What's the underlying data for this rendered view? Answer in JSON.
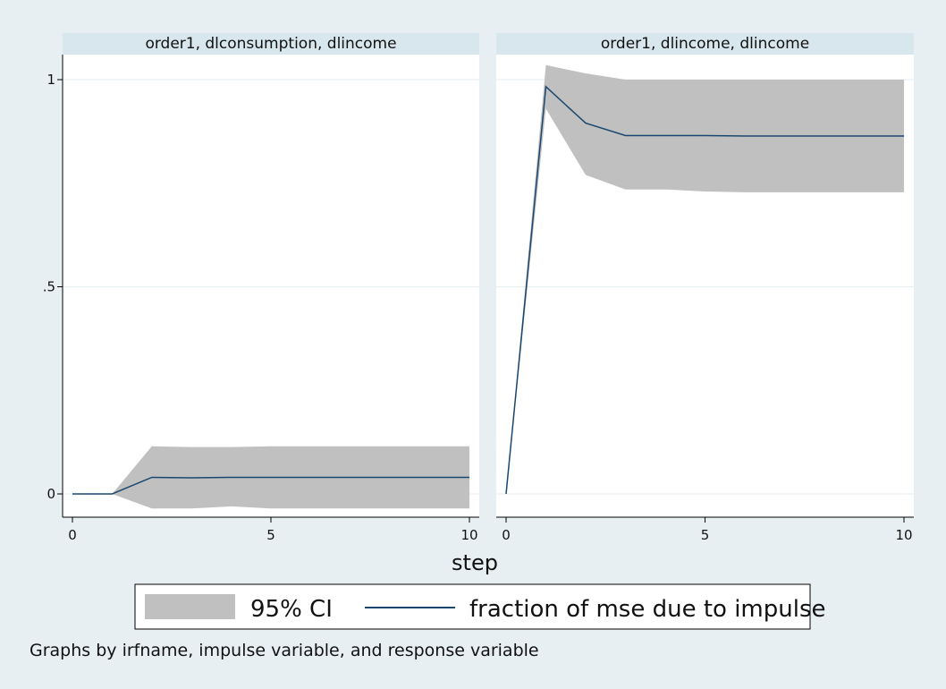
{
  "chart_data": {
    "type": "line",
    "xlabel": "step",
    "x_ticks": [
      0,
      5,
      10
    ],
    "y_ticks": [
      {
        "value": 0,
        "label": "0"
      },
      {
        "value": 0.5,
        "label": ".5"
      },
      {
        "value": 1,
        "label": "1"
      }
    ],
    "xlim": [
      0,
      10
    ],
    "ylim": [
      -0.05,
      1.05
    ],
    "grid": true,
    "panels": [
      {
        "title": "order1, dlconsumption, dlincome",
        "x": [
          0,
          1,
          2,
          3,
          4,
          5,
          6,
          7,
          8,
          9,
          10
        ],
        "series": [
          {
            "name": "95% CI",
            "kind": "band",
            "lower": [
              0,
              0,
              -0.035,
              -0.035,
              -0.03,
              -0.035,
              -0.035,
              -0.035,
              -0.035,
              -0.035,
              -0.035
            ],
            "upper": [
              0,
              0,
              0.115,
              0.113,
              0.113,
              0.115,
              0.115,
              0.115,
              0.115,
              0.115,
              0.115
            ]
          },
          {
            "name": "fraction of mse due to impulse",
            "kind": "line",
            "values": [
              0,
              0,
              0.04,
              0.039,
              0.04,
              0.04,
              0.04,
              0.04,
              0.04,
              0.04,
              0.04
            ]
          }
        ]
      },
      {
        "title": "order1, dlincome, dlincome",
        "x": [
          0,
          1,
          2,
          3,
          4,
          5,
          6,
          7,
          8,
          9,
          10
        ],
        "series": [
          {
            "name": "95% CI",
            "kind": "band",
            "lower": [
              0,
              0.93,
              0.77,
              0.735,
              0.735,
              0.73,
              0.728,
              0.728,
              0.728,
              0.728,
              0.728
            ],
            "upper": [
              0,
              1.035,
              1.015,
              1.0,
              1.0,
              1.0,
              1.0,
              1.0,
              1.0,
              1.0,
              1.0
            ]
          },
          {
            "name": "fraction of mse due to impulse",
            "kind": "line",
            "values": [
              0,
              0.983,
              0.895,
              0.865,
              0.865,
              0.865,
              0.864,
              0.864,
              0.864,
              0.864,
              0.864
            ]
          }
        ]
      }
    ],
    "legend": {
      "position": "bottom-center",
      "items": [
        {
          "label": "95% CI",
          "kind": "band"
        },
        {
          "label": "fraction of mse due to impulse",
          "kind": "line"
        }
      ]
    },
    "note": "Graphs by irfname, impulse variable, and response variable",
    "colors": {
      "background": "#e8eff2",
      "plot_bg": "#ffffff",
      "title_bar": "#d8e7ed",
      "band": "#c0c0c0",
      "line": "#1a476f",
      "grid": "#e6eef1",
      "axis": "#000000"
    }
  }
}
